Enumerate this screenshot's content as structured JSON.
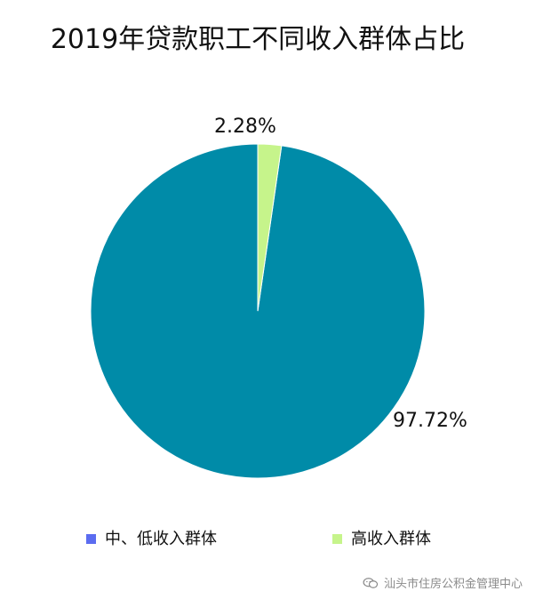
{
  "chart_data": {
    "type": "pie",
    "title": "2019年贷款职工不同收入群体占比",
    "slices": [
      {
        "name": "中、低收入群体",
        "value": 97.72,
        "label": "97.72%",
        "color": "#008ba8",
        "legend_color": "#5b6cf0"
      },
      {
        "name": "高收入群体",
        "value": 2.28,
        "label": "2.28%",
        "color": "#c6f48b",
        "legend_color": "#c6f48b"
      }
    ],
    "legend_position": "bottom",
    "start_angle_deg": 0,
    "direction": "counterclockwise"
  },
  "watermark": {
    "text": "汕头市住房公积金管理中心",
    "icon": "wechat-icon"
  }
}
